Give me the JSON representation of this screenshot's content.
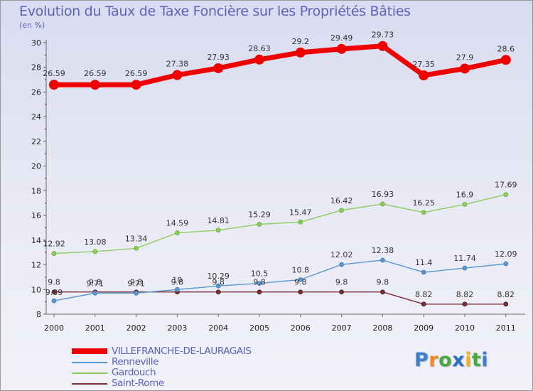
{
  "chart_data": {
    "type": "line",
    "title": "Evolution du Taux de Taxe Foncière sur les Propriétés Bâties",
    "subtitle": "(en %)",
    "xlabel": "",
    "ylabel": "(en %)",
    "ylim": [
      8,
      30
    ],
    "yticks": [
      "8",
      "10",
      "12",
      "14",
      "16",
      "18",
      "20",
      "22",
      "24",
      "26",
      "28",
      "30"
    ],
    "categories": [
      "2000",
      "2001",
      "2002",
      "2003",
      "2004",
      "2005",
      "2006",
      "2007",
      "2008",
      "2009",
      "2010",
      "2011"
    ],
    "grid": false,
    "legend_position": "bottom-left",
    "series": [
      {
        "name": "VILLEFRANCHE-DE-LAURAGAIS",
        "color": "#ee0000",
        "values": [
          26.59,
          26.59,
          26.59,
          27.38,
          27.93,
          28.63,
          29.2,
          29.49,
          29.73,
          27.35,
          27.9,
          28.6
        ],
        "labels": [
          "26.59",
          "26.59",
          "26.59",
          "27.38",
          "27.93",
          "28.63",
          "29.2",
          "29.49",
          "29.73",
          "27.35",
          "27.9",
          "28.6"
        ]
      },
      {
        "name": "Renneville",
        "color": "#5b96cc",
        "values": [
          9.09,
          9.71,
          9.71,
          10,
          10.29,
          10.5,
          10.8,
          12.02,
          12.38,
          11.4,
          11.74,
          12.09
        ],
        "labels": [
          "9.09",
          "9.71",
          "9.71",
          "10",
          "10.29",
          "10.5",
          "10.8",
          "12.02",
          "12.38",
          "11.4",
          "11.74",
          "12.09"
        ]
      },
      {
        "name": "Gardouch",
        "color": "#8ccc5c",
        "values": [
          12.92,
          13.08,
          13.34,
          14.59,
          14.81,
          15.29,
          15.47,
          16.42,
          16.93,
          16.25,
          16.9,
          17.69
        ],
        "labels": [
          "12.92",
          "13.08",
          "13.34",
          "14.59",
          "14.81",
          "15.29",
          "15.47",
          "16.42",
          "16.93",
          "16.25",
          "16.9",
          "17.69"
        ]
      },
      {
        "name": "Saint-Rome",
        "color": "#7a2e38",
        "values": [
          9.8,
          9.8,
          9.8,
          9.8,
          9.8,
          9.8,
          9.8,
          9.8,
          9.8,
          8.82,
          8.82,
          8.82
        ],
        "labels": [
          "9.8",
          "9.8",
          "9.8",
          "9.8",
          "9.8",
          "9.8",
          "9.8",
          "9.8",
          "9.8",
          "8.82",
          "8.82",
          "8.82"
        ]
      }
    ]
  },
  "brand": {
    "letters": [
      "P",
      "r",
      "o",
      "x",
      "i",
      "t",
      "i"
    ],
    "colors": [
      "#3a7fd0",
      "#f08c1e",
      "#4aa83c",
      "#2a6fc0",
      "#f0b41e",
      "#4aa83c",
      "#3a7fd0"
    ]
  }
}
